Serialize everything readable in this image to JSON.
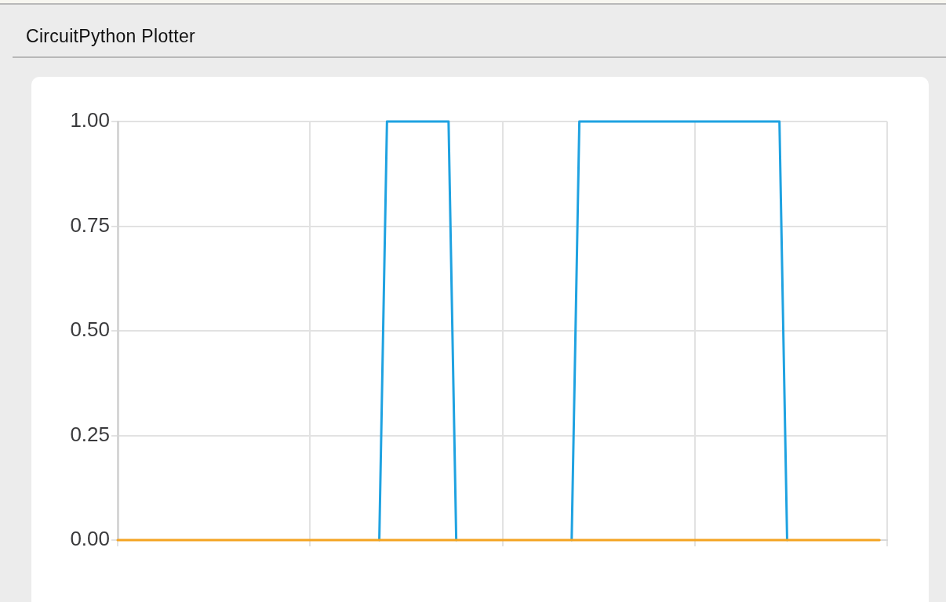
{
  "chart_data": {
    "type": "line",
    "title": "CircuitPython Plotter",
    "categories": [
      null,
      null,
      null,
      null,
      null,
      null,
      null,
      null,
      null,
      null,
      null,
      null,
      null,
      null,
      null,
      null,
      null,
      null,
      null,
      null,
      null,
      null,
      null,
      null,
      null,
      null,
      null,
      null,
      null,
      null,
      null,
      null,
      null,
      null,
      null,
      null,
      null,
      null,
      null,
      null,
      null,
      null,
      null,
      null,
      null,
      null,
      null,
      null,
      null,
      null,
      null,
      null,
      null,
      null,
      null,
      null,
      null,
      null,
      null,
      null,
      null,
      null,
      null,
      null,
      null,
      null,
      null,
      null,
      null,
      null,
      null,
      null,
      null,
      null,
      null,
      null,
      null,
      null,
      null,
      null,
      null,
      null,
      null,
      null,
      null,
      null,
      null,
      null,
      null,
      null,
      null,
      null,
      null,
      null,
      null,
      null,
      null,
      null,
      null,
      null
    ],
    "ylim": [
      0,
      1
    ],
    "yticks": [
      {
        "value": 0,
        "label": "0.00"
      },
      {
        "value": 0.25,
        "label": "0.25"
      },
      {
        "value": 0.5,
        "label": "0.50"
      },
      {
        "value": 0.75,
        "label": "0.75"
      },
      {
        "value": 1,
        "label": "1.00"
      }
    ],
    "grid": true,
    "legend": false,
    "marker": "none",
    "line_style": "solid",
    "series": [
      {
        "color": "#1fa2e1",
        "values": [
          null,
          null,
          null,
          null,
          null,
          null,
          null,
          null,
          null,
          null,
          null,
          null,
          null,
          null,
          null,
          null,
          null,
          null,
          null,
          null,
          null,
          null,
          null,
          null,
          null,
          null,
          null,
          null,
          null,
          null,
          null,
          null,
          null,
          null,
          0,
          1,
          1,
          1,
          1,
          1,
          1,
          1,
          1,
          1,
          0,
          null,
          null,
          null,
          null,
          null,
          null,
          null,
          null,
          null,
          null,
          null,
          null,
          null,
          null,
          0,
          1,
          1,
          1,
          1,
          1,
          1,
          1,
          1,
          1,
          1,
          1,
          1,
          1,
          1,
          1,
          1,
          1,
          1,
          1,
          1,
          1,
          1,
          1,
          1,
          1,
          1,
          1,
          0,
          null,
          null,
          null,
          null,
          null,
          null,
          null,
          null,
          null,
          null,
          null,
          null
        ]
      },
      {
        "color": "#f4a422",
        "values": [
          0,
          0,
          0,
          0,
          0,
          0,
          0,
          0,
          0,
          0,
          0,
          0,
          0,
          0,
          0,
          0,
          0,
          0,
          0,
          0,
          0,
          0,
          0,
          0,
          0,
          0,
          0,
          0,
          0,
          0,
          0,
          0,
          0,
          0,
          0,
          0,
          0,
          0,
          0,
          0,
          0,
          0,
          0,
          0,
          0,
          0,
          0,
          0,
          0,
          0,
          0,
          0,
          0,
          0,
          0,
          0,
          0,
          0,
          0,
          0,
          0,
          0,
          0,
          0,
          0,
          0,
          0,
          0,
          0,
          0,
          0,
          0,
          0,
          0,
          0,
          0,
          0,
          0,
          0,
          0,
          0,
          0,
          0,
          0,
          0,
          0,
          0,
          0,
          0,
          0,
          0,
          0,
          0,
          0,
          0,
          0,
          0,
          0,
          0,
          0
        ]
      }
    ]
  }
}
